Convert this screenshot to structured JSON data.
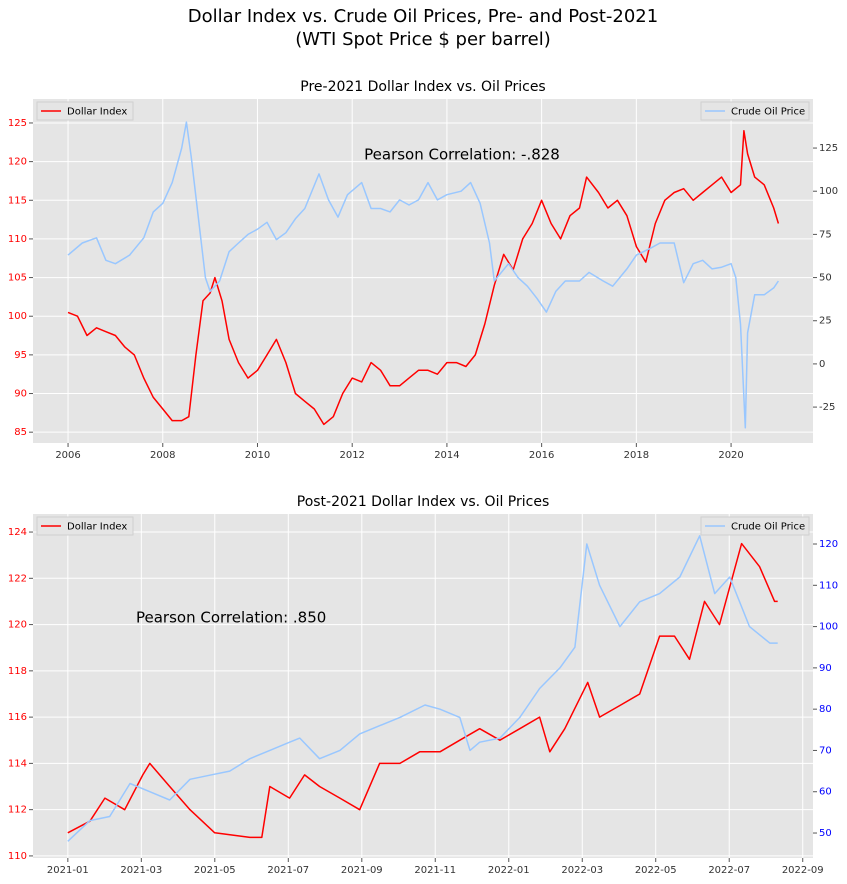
{
  "title": "Dollar Index vs. Crude Oil Prices, Pre- and Post-2021",
  "subtitle": "(WTI Spot Price $ per barrel)",
  "chart_data": [
    {
      "type": "line",
      "title": "Pre-2021 Dollar Index vs. Oil Prices",
      "annotation": "Pearson Correlation: -.828",
      "xlim": [
        2005.26,
        2021.73
      ],
      "xticks": [
        2006,
        2008,
        2010,
        2012,
        2014,
        2016,
        2018,
        2020
      ],
      "ylim": [
        83.6,
        128.1
      ],
      "yticks": [
        85,
        90,
        95,
        100,
        105,
        110,
        115,
        120,
        125
      ],
      "y2lim": [
        -45.8,
        153.4
      ],
      "y2ticks": [
        -25,
        0,
        25,
        50,
        75,
        100,
        125
      ],
      "ytick_color": "#ff0000",
      "y2tick_color": "#333333",
      "grid": true,
      "series": [
        {
          "name": "Dollar Index",
          "color": "#ff0000",
          "axis": "y",
          "legend": "upper left",
          "x": [
            2006.0,
            2006.2,
            2006.4,
            2006.6,
            2006.8,
            2007.0,
            2007.2,
            2007.4,
            2007.6,
            2007.8,
            2008.0,
            2008.2,
            2008.4,
            2008.55,
            2008.7,
            2008.85,
            2009.0,
            2009.1,
            2009.25,
            2009.4,
            2009.6,
            2009.8,
            2010.0,
            2010.2,
            2010.4,
            2010.6,
            2010.8,
            2011.0,
            2011.2,
            2011.4,
            2011.6,
            2011.8,
            2012.0,
            2012.2,
            2012.4,
            2012.6,
            2012.8,
            2013.0,
            2013.2,
            2013.4,
            2013.6,
            2013.8,
            2014.0,
            2014.2,
            2014.4,
            2014.6,
            2014.8,
            2015.0,
            2015.2,
            2015.4,
            2015.6,
            2015.8,
            2016.0,
            2016.2,
            2016.4,
            2016.6,
            2016.8,
            2016.95,
            2017.2,
            2017.4,
            2017.6,
            2017.8,
            2018.0,
            2018.2,
            2018.4,
            2018.6,
            2018.8,
            2019.0,
            2019.2,
            2019.4,
            2019.6,
            2019.8,
            2020.0,
            2020.2,
            2020.27,
            2020.35,
            2020.5,
            2020.7,
            2020.9,
            2021.0
          ],
          "values": [
            100.5,
            100,
            97.5,
            98.5,
            98,
            97.5,
            96,
            95,
            92,
            89.5,
            88,
            86.5,
            86.5,
            87,
            95,
            102,
            103,
            105,
            102,
            97,
            94,
            92,
            93,
            95,
            97,
            94,
            90,
            89,
            88,
            86,
            87,
            90,
            92,
            91.5,
            94,
            93,
            91,
            91,
            92,
            93,
            93,
            92.5,
            94,
            94,
            93.5,
            95,
            99,
            104,
            108,
            106,
            110,
            112,
            115,
            112,
            110,
            113,
            114,
            118,
            116,
            114,
            115,
            113,
            109,
            107,
            112,
            115,
            116,
            116.5,
            115,
            116,
            117,
            118,
            116,
            117,
            124,
            121,
            118,
            117,
            114,
            112
          ]
        },
        {
          "name": "Crude Oil Price",
          "color": "#99c7ff",
          "axis": "y2",
          "legend": "upper right",
          "x": [
            2006.0,
            2006.3,
            2006.6,
            2006.8,
            2007.0,
            2007.3,
            2007.6,
            2007.8,
            2008.0,
            2008.2,
            2008.4,
            2008.5,
            2008.6,
            2008.75,
            2008.9,
            2009.0,
            2009.2,
            2009.4,
            2009.6,
            2009.8,
            2010.0,
            2010.2,
            2010.4,
            2010.6,
            2010.8,
            2011.0,
            2011.3,
            2011.5,
            2011.7,
            2011.9,
            2012.2,
            2012.4,
            2012.6,
            2012.8,
            2013.0,
            2013.2,
            2013.4,
            2013.6,
            2013.8,
            2014.0,
            2014.3,
            2014.5,
            2014.7,
            2014.9,
            2015.0,
            2015.3,
            2015.5,
            2015.7,
            2015.9,
            2016.1,
            2016.3,
            2016.5,
            2016.8,
            2017.0,
            2017.3,
            2017.5,
            2017.8,
            2018.0,
            2018.3,
            2018.5,
            2018.8,
            2019.0,
            2019.2,
            2019.4,
            2019.6,
            2019.8,
            2020.0,
            2020.1,
            2020.2,
            2020.3,
            2020.35,
            2020.5,
            2020.7,
            2020.9,
            2021.0
          ],
          "values": [
            63,
            70,
            73,
            60,
            58,
            63,
            73,
            88,
            93,
            105,
            125,
            140,
            120,
            85,
            50,
            42,
            48,
            65,
            70,
            75,
            78,
            82,
            72,
            76,
            84,
            90,
            110,
            95,
            85,
            98,
            105,
            90,
            90,
            88,
            95,
            92,
            95,
            105,
            95,
            98,
            100,
            105,
            93,
            70,
            48,
            58,
            50,
            45,
            38,
            30,
            42,
            48,
            48,
            53,
            48,
            45,
            55,
            63,
            67,
            70,
            70,
            47,
            58,
            60,
            55,
            56,
            58,
            50,
            23,
            -37,
            18,
            40,
            40,
            44,
            48
          ]
        }
      ]
    },
    {
      "type": "line",
      "title": "Post-2021 Dollar Index vs. Oil Prices",
      "annotation": "Pearson Correlation: .850",
      "xlim": [
        2020.921,
        2022.69
      ],
      "xticks": [
        {
          "value": 2021.0,
          "label": "2021-01"
        },
        {
          "value": 2021.1667,
          "label": "2021-03"
        },
        {
          "value": 2021.3333,
          "label": "2021-05"
        },
        {
          "value": 2021.5,
          "label": "2021-07"
        },
        {
          "value": 2021.6667,
          "label": "2021-09"
        },
        {
          "value": 2021.8333,
          "label": "2021-11"
        },
        {
          "value": 2022.0,
          "label": "2022-01"
        },
        {
          "value": 2022.1667,
          "label": "2022-03"
        },
        {
          "value": 2022.3333,
          "label": "2022-05"
        },
        {
          "value": 2022.5,
          "label": "2022-07"
        },
        {
          "value": 2022.6667,
          "label": "2022-09"
        }
      ],
      "ylim": [
        109.91,
        124.78
      ],
      "yticks": [
        110,
        112,
        114,
        116,
        118,
        120,
        122,
        124
      ],
      "y2lim": [
        43.95,
        127.27
      ],
      "y2ticks": [
        50,
        60,
        70,
        80,
        90,
        100,
        110,
        120
      ],
      "ytick_color": "#ff0000",
      "y2tick_color": "#0000ff",
      "grid": true,
      "series": [
        {
          "name": "Dollar Index",
          "color": "#ff0000",
          "axis": "y",
          "legend": "upper left",
          "x": [
            2021.0,
            2021.05,
            2021.084,
            2021.129,
            2021.17,
            2021.186,
            2021.231,
            2021.277,
            2021.333,
            2021.413,
            2021.44,
            2021.458,
            2021.503,
            2021.537,
            2021.571,
            2021.617,
            2021.662,
            2021.707,
            2021.753,
            2021.798,
            2021.844,
            2021.889,
            2021.934,
            2021.98,
            2022.025,
            2022.07,
            2022.093,
            2022.127,
            2022.179,
            2022.206,
            2022.252,
            2022.297,
            2022.342,
            2022.376,
            2022.41,
            2022.444,
            2022.478,
            2022.528,
            2022.569,
            2022.603,
            2022.61
          ],
          "values": [
            111,
            111.5,
            112.5,
            112,
            113.5,
            114,
            113,
            112,
            111,
            110.8,
            110.8,
            113,
            112.5,
            113.5,
            113,
            112.5,
            112,
            114,
            114,
            114.5,
            114.5,
            115,
            115.5,
            115,
            115.5,
            116,
            114.5,
            115.5,
            117.5,
            116,
            116.5,
            117,
            119.5,
            119.5,
            118.5,
            121,
            120,
            123.5,
            122.5,
            121,
            121
          ]
        },
        {
          "name": "Crude Oil Price",
          "color": "#99c7ff",
          "axis": "y2",
          "legend": "upper right",
          "x": [
            2021.0,
            2021.05,
            2021.095,
            2021.141,
            2021.186,
            2021.231,
            2021.277,
            2021.322,
            2021.367,
            2021.413,
            2021.458,
            2021.503,
            2021.526,
            2021.571,
            2021.617,
            2021.662,
            2021.707,
            2021.753,
            2021.81,
            2021.844,
            2021.889,
            2021.912,
            2021.934,
            2021.98,
            2022.025,
            2022.07,
            2022.116,
            2022.15,
            2022.177,
            2022.206,
            2022.252,
            2022.297,
            2022.342,
            2022.388,
            2022.433,
            2022.467,
            2022.501,
            2022.546,
            2022.592,
            2022.61
          ],
          "values": [
            48,
            53,
            54,
            62,
            60,
            58,
            63,
            64,
            65,
            68,
            70,
            72,
            73,
            68,
            70,
            74,
            76,
            78,
            81,
            80,
            78,
            70,
            72,
            73,
            78,
            85,
            90,
            95,
            120,
            110,
            100,
            106,
            108,
            112,
            122,
            108,
            112,
            100,
            96,
            96
          ]
        }
      ]
    }
  ]
}
